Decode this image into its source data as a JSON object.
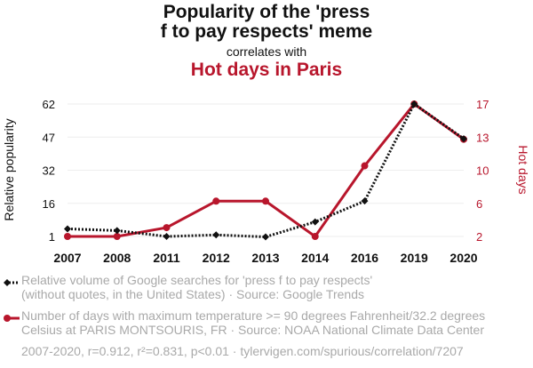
{
  "header": {
    "title_line1": "Popularity of the 'press",
    "title_line2": "f to pay respects' meme",
    "connector": "correlates with",
    "title2": "Hot days in Paris"
  },
  "colors": {
    "series1": "#111111",
    "series2": "#b8162c",
    "muted": "#a9a9a9"
  },
  "chart_data": {
    "type": "line",
    "categories": [
      "2007",
      "2008",
      "2011",
      "2012",
      "2013",
      "2014",
      "2016",
      "2019",
      "2020"
    ],
    "series": [
      {
        "name": "Relative volume of Google searches for 'press f to pay respects' (without quotes, in the United States) · Source: Google Trends",
        "axis": "left",
        "style": "dotted-black-diamond",
        "values": [
          4.5,
          3.7,
          1.0,
          1.7,
          0.8,
          7.7,
          17.3,
          62.0,
          46.0
        ]
      },
      {
        "name": "Number of days with maximum temperature >= 90 degrees Fahrenheit/32.2 degrees Celsius at PARIS MONTSOURIS, FR · Source: NOAA National Climate Data Center",
        "axis": "right",
        "style": "solid-red-circle",
        "values": [
          2,
          2,
          3,
          6,
          6,
          2,
          10,
          17,
          13
        ]
      }
    ],
    "ylabel_left": "Relative popularity",
    "ylabel_right": "Hot days",
    "yticks_left": [
      "1",
      "16",
      "32",
      "47",
      "62"
    ],
    "yticks_right": [
      "2",
      "6",
      "10",
      "13",
      "17"
    ],
    "ylim_left": [
      1,
      62
    ],
    "ylim_right": [
      2,
      17
    ],
    "grid": true,
    "legend_placement": "bottom"
  },
  "legend": {
    "series1_line1": "Relative volume of Google searches for 'press f to pay respects'",
    "series1_line2": "(without quotes, in the United States) · Source: Google Trends",
    "series2_line1": "Number of days with maximum temperature >= 90 degrees Fahrenheit/32.2 degrees",
    "series2_line2": "Celsius at PARIS MONTSOURIS, FR · Source: NOAA National Climate Data Center"
  },
  "footer": "2007-2020, r=0.912, r²=0.831, p<0.01 · tylervigen.com/spurious/correlation/7207"
}
